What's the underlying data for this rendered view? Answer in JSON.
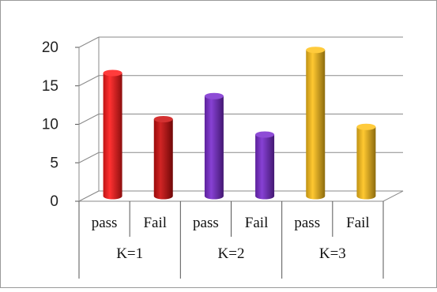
{
  "chart_data": {
    "type": "bar",
    "style": "3d-cylinder",
    "groups": [
      {
        "label": "K=1",
        "bars": [
          {
            "label": "pass",
            "value": 16,
            "color": "#ff1a1a"
          },
          {
            "label": "Fail",
            "value": 10,
            "color": "#cc0d0d"
          }
        ]
      },
      {
        "label": "K=2",
        "bars": [
          {
            "label": "pass",
            "value": 13,
            "color": "#7a2ccf"
          },
          {
            "label": "Fail",
            "value": 8,
            "color": "#7a2ccf"
          }
        ]
      },
      {
        "label": "K=3",
        "bars": [
          {
            "label": "pass",
            "value": 19,
            "color": "#ffc21a"
          },
          {
            "label": "Fail",
            "value": 9,
            "color": "#ffc21a"
          }
        ]
      }
    ],
    "y_ticks": [
      "0",
      "5",
      "10",
      "15",
      "20"
    ],
    "ylim": [
      0,
      20
    ],
    "grid": true,
    "legend": "none",
    "title": "",
    "xlabel": "",
    "ylabel": ""
  }
}
